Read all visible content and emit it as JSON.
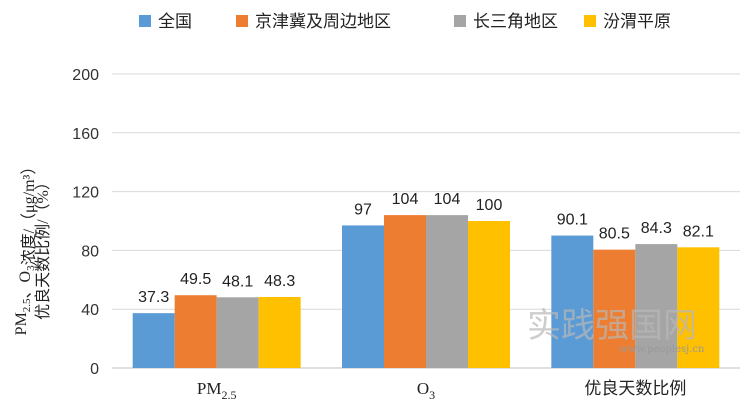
{
  "chart_data": {
    "type": "bar",
    "categories": [
      "PM2.5",
      "O3",
      "优良天数比例"
    ],
    "series": [
      {
        "name": "全国",
        "color": "#5B9BD5",
        "values": [
          37.3,
          97,
          90.1
        ],
        "labels": [
          "37.3",
          "97",
          "90.1"
        ]
      },
      {
        "name": "京津冀及周边地区",
        "color": "#ED7D31",
        "values": [
          49.5,
          104,
          80.5
        ],
        "labels": [
          "49.5",
          "104",
          "80.5"
        ]
      },
      {
        "name": "长三角地区",
        "color": "#A5A5A5",
        "values": [
          48.1,
          104,
          84.3
        ],
        "labels": [
          "48.1",
          "104",
          "84.3"
        ]
      },
      {
        "name": "汾渭平原",
        "color": "#FFC000",
        "values": [
          48.3,
          100,
          82.1
        ],
        "labels": [
          "48.3",
          "100",
          "82.1"
        ]
      }
    ],
    "ylim": [
      0,
      200
    ],
    "yticks": [
      "0",
      "40",
      "80",
      "120",
      "160",
      "200"
    ],
    "ylabel_line1": "PM2.5、O3浓度/（μg/m³）",
    "ylabel_line2": "优良天数比例/（%）",
    "grid": true,
    "legend_position": "top"
  },
  "watermark": {
    "text": "实践强国网",
    "url": "www.peoplesj.cn"
  }
}
